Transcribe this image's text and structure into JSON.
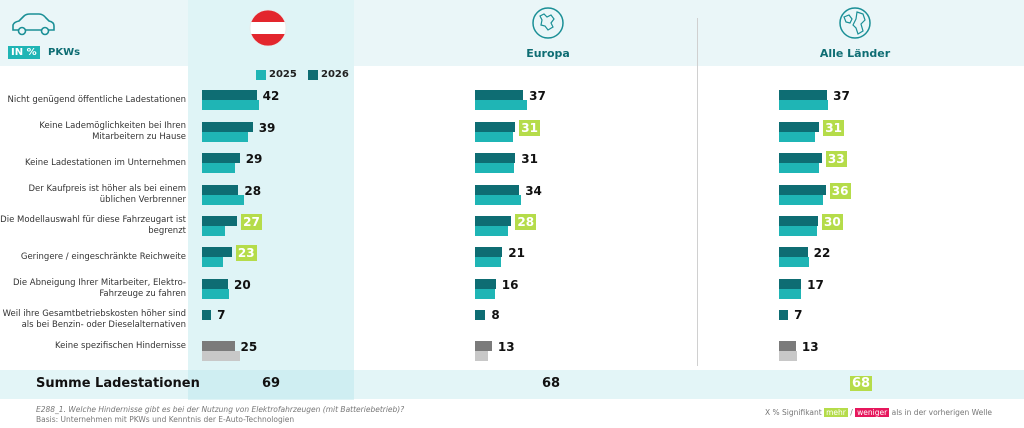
{
  "header": {
    "unit_badge": "IN %",
    "unit_label": "PKWs",
    "col_austria_flag": "austria-flag",
    "col_europa": "Europa",
    "col_alle": "Alle Länder"
  },
  "legend": {
    "y2025": "2025",
    "y2026": "2026"
  },
  "colors": {
    "y2025": "#1fb5b5",
    "y2026": "#0e6d73",
    "grey_dark": "#7b7b7b",
    "grey_light": "#c8c8c8",
    "highlight_col": "#dff4f6",
    "significant_more": "#b5dc4a",
    "significant_less": "#e6175c"
  },
  "chart_data": {
    "type": "bar",
    "title": "E288_1. Welche Hindernisse gibt es bei der Nutzung von Elektrofahrzeugen (mit Batteriebetrieb)?",
    "unit": "%",
    "categories": [
      "Nicht genügend öffentliche Ladestationen",
      "Keine Lademöglichkeiten bei Ihren Mitarbeitern zu Hause",
      "Keine Ladestationen im Unternehmen",
      "Der Kaufpreis ist höher als bei einem üblichen Verbrenner",
      "Die Modellauswahl für diese Fahrzeugart ist begrenzt",
      "Geringere / eingeschränkte Reichweite",
      "Die Abneigung Ihrer Mitarbeiter, Elektro-Fahrzeuge zu fahren",
      "Weil ihre Gesamtbetriebskosten höher sind als bei Benzin- oder Dieselalternativen",
      "Keine spezifischen Hindernisse"
    ],
    "panels": [
      {
        "name": "Österreich",
        "series": [
          {
            "name": "2026",
            "values": [
              42,
              39,
              29,
              28,
              27,
              23,
              20,
              7,
              25
            ]
          },
          {
            "name": "2025",
            "values": [
              44,
              35,
              25,
              32,
              18,
              16,
              21,
              null,
              29
            ]
          }
        ],
        "significant_more": [
          false,
          false,
          false,
          false,
          true,
          true,
          false,
          false,
          false
        ],
        "sum_label": "69",
        "sum_significant": false
      },
      {
        "name": "Europa",
        "series": [
          {
            "name": "2026",
            "values": [
              37,
              31,
              31,
              34,
              28,
              21,
              16,
              8,
              13
            ]
          },
          {
            "name": "2025",
            "values": [
              40,
              29,
              30,
              35,
              25,
              20,
              15,
              null,
              10
            ]
          }
        ],
        "significant_more": [
          false,
          true,
          false,
          false,
          true,
          false,
          false,
          false,
          false
        ],
        "sum_label": "68",
        "sum_significant": false
      },
      {
        "name": "Alle Länder",
        "series": [
          {
            "name": "2026",
            "values": [
              37,
              31,
              33,
              36,
              30,
              22,
              17,
              7,
              13
            ]
          },
          {
            "name": "2025",
            "values": [
              38,
              28,
              31,
              34,
              29,
              23,
              17,
              null,
              14
            ]
          }
        ],
        "significant_more": [
          false,
          true,
          true,
          true,
          true,
          false,
          false,
          false,
          false
        ],
        "sum_label": "68",
        "sum_significant": true
      }
    ],
    "sum_row_label": "Summe Ladestationen"
  },
  "footer": {
    "question": "E288_1. Welche Hindernisse gibt es bei der Nutzung von Elektrofahrzeugen (mit Batteriebetrieb)?",
    "basis": "Basis: Unternehmen mit PKWs und Kenntnis der E-Auto-Technologien",
    "sig_prefix": "X %  Signifikant",
    "sig_more": "mehr",
    "sig_sep": "/",
    "sig_less": "weniger",
    "sig_suffix": "als in der vorherigen Welle"
  }
}
